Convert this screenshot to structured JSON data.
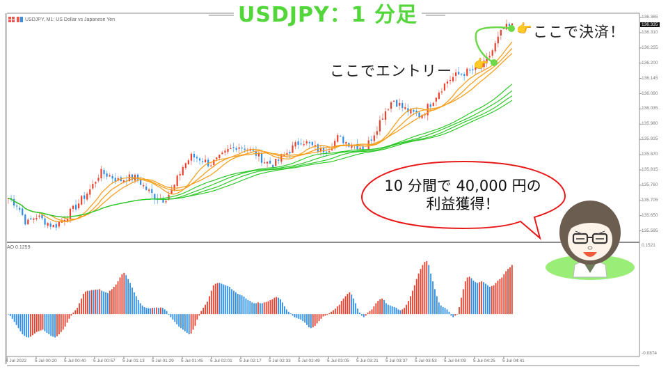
{
  "title": "USDJPY：1 分足",
  "chart_header": {
    "symbol_text": "USDJPY, M1:  US Dollar vs Japanese Yen",
    "icons": [
      "grid-icon",
      "candle-chart-icon"
    ]
  },
  "price_axis": {
    "labels": [
      "136.365",
      "136.310",
      "136.255",
      "136.200",
      "136.145",
      "136.090",
      "136.035",
      "135.980",
      "135.925",
      "135.870",
      "135.815",
      "135.760",
      "135.705",
      "135.650",
      "135.595"
    ],
    "current_price": "136.335"
  },
  "ao_axis": {
    "indicator_label": "AO 0.1259",
    "max_label": "0.1521",
    "min_label": "-0.0874"
  },
  "time_axis": {
    "labels": [
      "4 Jul 2022",
      "5 Jul 00:20",
      "5 Jul 00:40",
      "5 Jul 00:57",
      "5 Jul 01:13",
      "5 Jul 01:29",
      "5 Jul 01:45",
      "5 Jul 02:01",
      "5 Jul 02:17",
      "5 Jul 02:33",
      "5 Jul 02:49",
      "5 Jul 03:05",
      "5 Jul 03:21",
      "5 Jul 03:37",
      "5 Jul 03:53",
      "5 Jul 04:09",
      "5 Jul 04:25",
      "5 Jul 04:41"
    ]
  },
  "annotations": {
    "exit_text": "ここで決済！",
    "entry_text": "ここでエントリー",
    "bubble_line1": "10 分間で 40,000 円の",
    "bubble_line2": "利益獲得！",
    "hand_glyph": "👉"
  },
  "colors": {
    "title_green": "#52d63a",
    "bull_candle": "#e8402c",
    "bear_candle": "#2b8de8",
    "ma_fast": "#f5a020",
    "ma_slow": "#2fc82a",
    "bubble_border": "#e81818",
    "marker_green": "#6cd84a",
    "avatar_base": "#9aee78"
  },
  "chart_data": [
    {
      "type": "candlestick",
      "title": "USDJPY, M1: US Dollar vs Japanese Yen",
      "xlabel": "Time",
      "ylabel": "Price",
      "ylim": [
        135.55,
        136.38
      ],
      "x_range": [
        "4 Jul 2022",
        "5 Jul 04:45"
      ],
      "close_path": [
        135.705,
        135.68,
        135.61,
        135.64,
        135.62,
        135.6,
        135.63,
        135.66,
        135.7,
        135.74,
        135.8,
        135.79,
        135.77,
        135.78,
        135.78,
        135.74,
        135.71,
        135.7,
        135.74,
        135.82,
        135.86,
        135.85,
        135.83,
        135.85,
        135.88,
        135.9,
        135.89,
        135.87,
        135.84,
        135.83,
        135.86,
        135.89,
        135.92,
        135.9,
        135.88,
        135.89,
        135.93,
        135.91,
        135.9,
        135.89,
        135.95,
        136.02,
        136.07,
        136.04,
        136.02,
        136.01,
        136.05,
        136.1,
        136.14,
        136.16,
        136.17,
        136.18,
        136.2,
        136.26,
        136.33,
        136.34
      ],
      "entry_marker": {
        "time": "5 Jul 04:31",
        "price": 136.2,
        "label": "ここでエントリー"
      },
      "exit_marker": {
        "time": "5 Jul 04:41",
        "price": 136.335,
        "label": "ここで決済！"
      },
      "overlays": [
        {
          "name": "Fast MA ribbon (orange, 3 lines)",
          "color": "#f5a020"
        },
        {
          "name": "Slow MA ribbon (green, 4 lines)",
          "color": "#2fc82a"
        }
      ]
    },
    {
      "type": "bar",
      "title": "AO 0.1259",
      "series_name": "Awesome Oscillator",
      "ylim": [
        -0.0874,
        0.1521
      ],
      "values": [
        0.0,
        -0.005,
        -0.012,
        -0.02,
        -0.028,
        -0.036,
        -0.044,
        -0.052,
        -0.056,
        -0.059,
        -0.06,
        -0.058,
        -0.054,
        -0.05,
        -0.046,
        -0.044,
        -0.042,
        -0.04,
        -0.044,
        -0.048,
        -0.052,
        -0.056,
        -0.058,
        -0.06,
        -0.057,
        -0.052,
        -0.046,
        -0.04,
        -0.032,
        -0.022,
        -0.012,
        -0.004,
        0.004,
        0.01,
        0.016,
        0.028,
        0.04,
        0.052,
        0.058,
        0.06,
        0.06,
        0.062,
        0.062,
        0.063,
        0.063,
        0.064,
        0.06,
        0.058,
        0.056,
        0.054,
        0.06,
        0.064,
        0.07,
        0.076,
        0.084,
        0.094,
        0.102,
        0.106,
        0.1,
        0.09,
        0.08,
        0.068,
        0.056,
        0.046,
        0.036,
        0.028,
        0.022,
        0.018,
        0.016,
        0.015,
        0.015,
        0.016,
        0.016,
        0.017,
        0.016,
        0.017,
        0.016,
        0.012,
        0.008,
        -0.002,
        -0.008,
        -0.014,
        -0.02,
        -0.026,
        -0.032,
        -0.036,
        -0.04,
        -0.044,
        -0.048,
        -0.052,
        -0.05,
        -0.04,
        -0.03,
        -0.014,
        -0.004,
        0.008,
        0.016,
        0.024,
        0.032,
        0.046,
        0.06,
        0.074,
        0.078,
        0.08,
        0.08,
        0.078,
        0.076,
        0.074,
        0.072,
        0.07,
        0.064,
        0.06,
        0.056,
        0.052,
        0.05,
        0.048,
        0.045,
        0.04,
        0.036,
        0.034,
        0.03,
        0.028,
        0.028,
        0.03,
        0.028,
        0.028,
        0.03,
        0.031,
        0.033,
        0.036,
        0.038,
        0.042,
        0.044,
        0.042,
        0.038,
        0.03,
        0.02,
        0.012,
        0.006,
        0.002,
        -0.004,
        -0.008,
        -0.01,
        -0.012,
        -0.014,
        -0.018,
        -0.022,
        -0.028,
        -0.034,
        -0.036,
        -0.034,
        -0.03,
        -0.024,
        -0.018,
        -0.012,
        -0.006,
        -0.004,
        -0.002,
        0.002,
        0.006,
        0.01,
        0.014,
        0.02,
        0.024,
        0.034,
        0.04,
        0.046,
        0.052,
        0.056,
        0.05,
        0.04,
        0.028,
        0.014,
        0.004,
        -0.004,
        -0.008,
        -0.004,
        0.004,
        0.008,
        0.012,
        0.02,
        0.028,
        0.034,
        0.038,
        0.04,
        0.036,
        0.028,
        0.024,
        0.022,
        0.02,
        0.018,
        0.016,
        0.012,
        0.01,
        0.012,
        0.016,
        0.024,
        0.034,
        0.046,
        0.06,
        0.074,
        0.09,
        0.104,
        0.116,
        0.126,
        0.134,
        0.136,
        0.126,
        0.104,
        0.084,
        0.064,
        0.046,
        0.03,
        0.022,
        0.018,
        0.016,
        0.012,
        0.006,
        -0.004,
        -0.008,
        -0.004,
        0.0,
        0.018,
        0.042,
        0.064,
        0.084,
        0.094,
        0.096,
        0.092,
        0.086,
        0.082,
        0.08,
        0.082,
        0.084,
        0.082,
        0.078,
        0.074,
        0.07,
        0.072,
        0.074,
        0.08,
        0.086,
        0.09,
        0.094,
        0.102,
        0.11,
        0.116,
        0.12,
        0.126
      ]
    }
  ]
}
